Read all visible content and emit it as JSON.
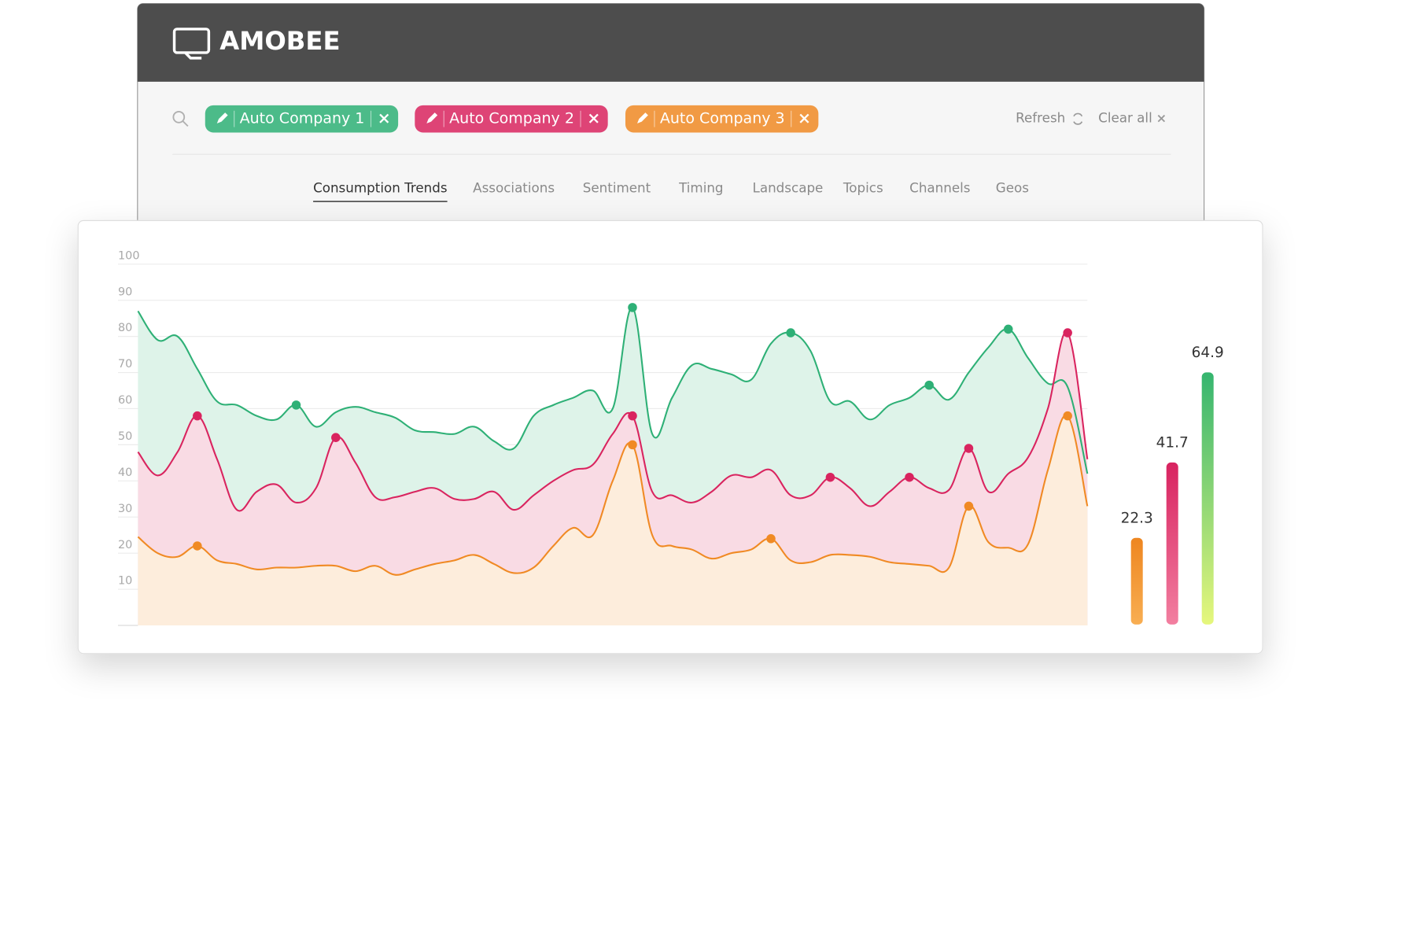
{
  "header": {
    "brand": "AMOBEE"
  },
  "actions": [
    "Refresh",
    "Clear all"
  ],
  "tabs": [
    "Consumption Trends",
    "Associations",
    "Sentiment",
    "Timing",
    "Landscape",
    "Topics",
    "Channels",
    "Geos"
  ],
  "chart_data": [
    {
      "type": "area",
      "ylim": [
        0,
        100
      ],
      "yticks": [
        10,
        20,
        30,
        40,
        50,
        60,
        70,
        80,
        90,
        100
      ],
      "grid": true,
      "series": [
        {
          "name": "Auto Company 1",
          "color": "#2eb076",
          "fill": "#def3e9",
          "values": [
            87,
            79,
            80,
            71,
            62,
            61,
            58,
            57,
            61,
            55,
            59,
            60.5,
            59,
            57.5,
            54,
            53.5,
            53,
            55,
            51,
            49,
            58,
            61,
            63,
            65,
            60,
            88,
            53,
            63,
            72,
            71,
            69.5,
            68,
            78,
            81,
            76,
            62,
            62,
            57,
            61,
            63,
            66.5,
            62.5,
            70,
            77,
            82,
            74,
            67,
            66,
            42
          ]
        },
        {
          "name": "Auto Company 2",
          "color": "#d9245f",
          "fill": "#f9dbe4",
          "values": [
            48,
            41.5,
            48,
            58,
            46,
            32,
            37,
            39,
            34,
            38,
            52,
            45,
            35.5,
            35.5,
            37,
            38,
            35,
            35,
            37,
            32,
            36,
            40,
            43,
            44.5,
            53,
            58,
            37,
            36,
            34,
            37,
            41.5,
            41,
            43,
            36,
            36,
            41,
            38,
            33,
            37,
            41,
            38,
            37.5,
            49,
            37,
            42,
            46.5,
            60,
            81,
            46
          ]
        },
        {
          "name": "Auto Company 3",
          "color": "#f08a24",
          "fill": "#fdeddc",
          "values": [
            24.5,
            20,
            19,
            22,
            18,
            17,
            15.5,
            16,
            16,
            16.5,
            16.5,
            15,
            16.5,
            14,
            15.5,
            17,
            18,
            19.5,
            17,
            14.5,
            16,
            22,
            27,
            25,
            40,
            50,
            25,
            22,
            21,
            18.5,
            20,
            21,
            24,
            18,
            17.5,
            19.5,
            19.5,
            19,
            17.5,
            17,
            16.5,
            16,
            33,
            23,
            21.5,
            22.5,
            43,
            58,
            33
          ]
        }
      ]
    },
    {
      "type": "bar",
      "ylim": [
        0,
        100
      ],
      "values": [
        22.3,
        41.7,
        64.9
      ],
      "colors": [
        [
          "#ee8620",
          "#f8ae52"
        ],
        [
          "#d82360",
          "#f27fa0"
        ],
        [
          "#35b56f",
          "#e6f77c"
        ]
      ]
    }
  ]
}
